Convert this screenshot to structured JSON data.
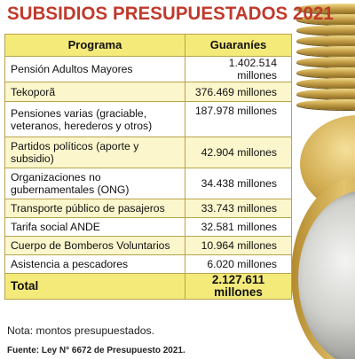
{
  "title": "SUBSIDIOS PRESUPUESTADOS 2021",
  "table": {
    "headers": {
      "program": "Programa",
      "amount": "Guaraníes"
    },
    "rows": [
      {
        "program": "Pensión Adultos Mayores",
        "amount": "1.402.514 millones"
      },
      {
        "program": "Tekoporã",
        "amount": "376.469 millones"
      },
      {
        "program": "Pensiones varias (graciable, veteranos, herederos y otros)",
        "amount": "187.978 millones"
      },
      {
        "program": "Partidos políticos (aporte y subsidio)",
        "amount": "42.904 millones"
      },
      {
        "program": "Organizaciones no gubernamentales (ONG)",
        "amount": "34.438 millones"
      },
      {
        "program": "Transporte público de pasajeros",
        "amount": "33.743 millones"
      },
      {
        "program": "Tarifa social ANDE",
        "amount": "32.581 millones"
      },
      {
        "program": "Cuerpo de Bomberos Voluntarios",
        "amount": "10.964 millones"
      },
      {
        "program": "Asistencia a pescadores",
        "amount": "6.020 millones"
      }
    ],
    "total": {
      "label": "Total",
      "amount": "2.127.611 millones"
    }
  },
  "note": "Nota: montos presupuestados.",
  "source": "Fuente: Ley N° 6672 de Presupuesto 2021.",
  "colors": {
    "title": "#c0392b",
    "header_bg": "#f4ea7a",
    "row_shade": "#fbf6cc",
    "border": "#b9a44a"
  }
}
